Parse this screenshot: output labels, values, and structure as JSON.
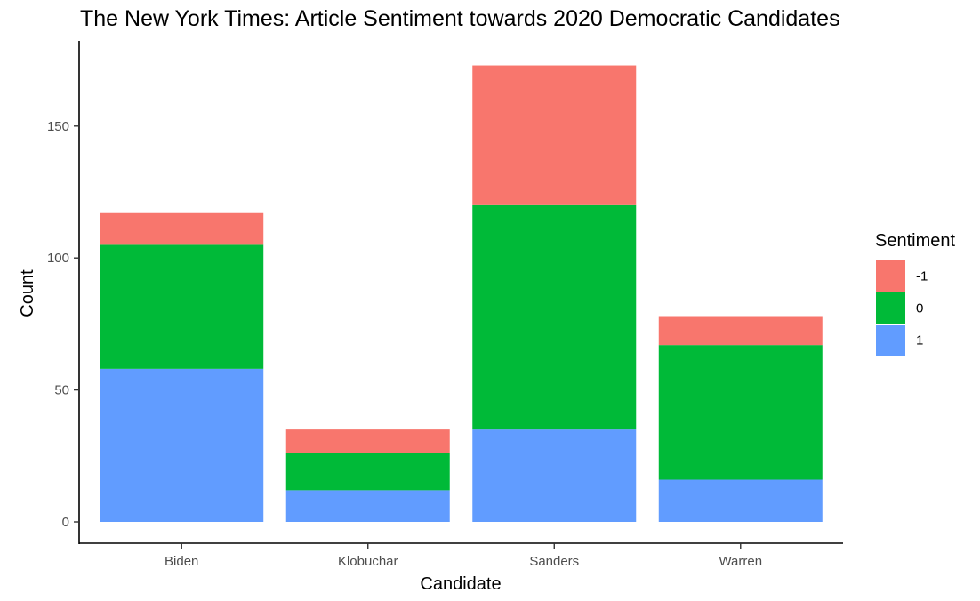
{
  "chart_data": {
    "type": "bar",
    "stacked": true,
    "title": "The New York Times: Article Sentiment towards 2020 Democratic Candidates",
    "xlabel": "Candidate",
    "ylabel": "Count",
    "categories": [
      "Biden",
      "Klobuchar",
      "Sanders",
      "Warren"
    ],
    "ylim": [
      0,
      175
    ],
    "yticks": [
      0,
      50,
      100,
      150
    ],
    "grid": false,
    "legend": {
      "title": "Sentiment",
      "position": "right"
    },
    "series": [
      {
        "name": "-1",
        "color": "#F8766D",
        "values": [
          12,
          9,
          53,
          11
        ]
      },
      {
        "name": "0",
        "color": "#00BA38",
        "values": [
          47,
          14,
          85,
          51
        ]
      },
      {
        "name": "1",
        "color": "#619CFF",
        "values": [
          58,
          12,
          35,
          16
        ]
      }
    ],
    "stack_order_bottom_to_top": [
      "1",
      "0",
      "-1"
    ]
  }
}
